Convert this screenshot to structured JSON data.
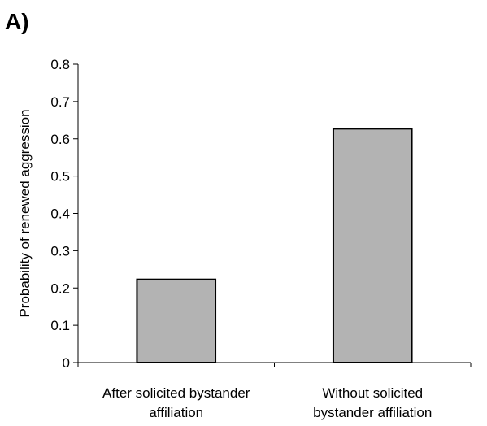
{
  "panel_label": "A)",
  "chart_data": {
    "type": "bar",
    "title": "",
    "xlabel": "",
    "ylabel": "Probability of renewed aggression",
    "categories": [
      [
        "After solicited bystander",
        "affiliation"
      ],
      [
        "Without solicited",
        "bystander affiliation"
      ]
    ],
    "values": [
      0.223,
      0.627
    ],
    "ylim": [
      0,
      0.8
    ],
    "yticks": [
      0,
      0.1,
      0.2,
      0.3,
      0.4,
      0.5,
      0.6,
      0.7,
      0.8
    ],
    "ytick_labels": [
      "0",
      "0.1",
      "0.2",
      "0.3",
      "0.4",
      "0.5",
      "0.6",
      "0.7",
      "0.8"
    ],
    "grid": false,
    "legend": "none",
    "bar_color": "#b3b3b3"
  }
}
